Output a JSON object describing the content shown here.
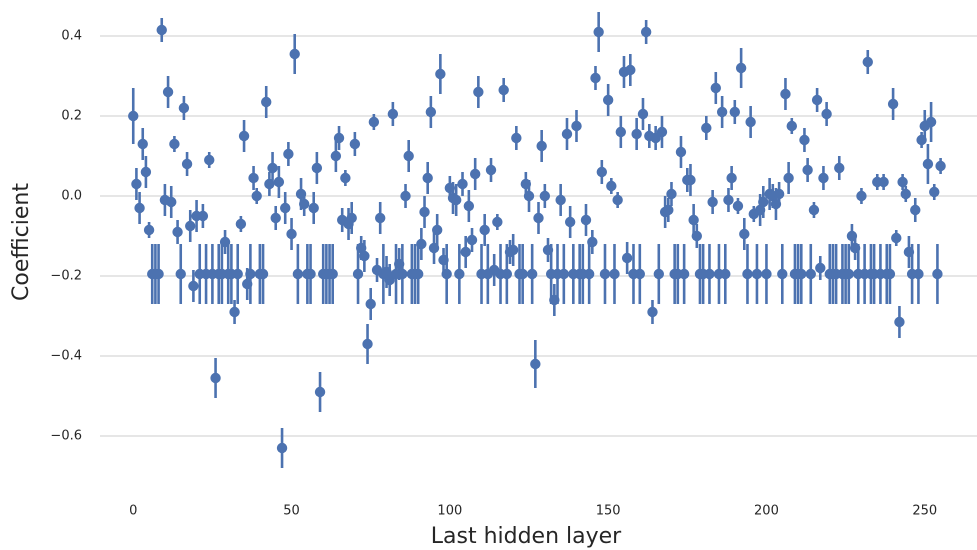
{
  "chart_data": {
    "type": "errorbar-scatter",
    "xlabel": "Last hidden layer",
    "ylabel": "Coefficient",
    "color": "#4c72b0",
    "grid": true,
    "xlim": [
      -10.5,
      266.5
    ],
    "ylim": [
      -0.71,
      0.49
    ],
    "xticks": [
      0,
      50,
      100,
      150,
      200,
      250
    ],
    "yticks": [
      {
        "value": -0.6,
        "label": "−0.6"
      },
      {
        "value": -0.4,
        "label": "−0.4"
      },
      {
        "value": -0.2,
        "label": "−0.2"
      },
      {
        "value": 0,
        "label": "0.0"
      },
      0.2,
      0.4
    ],
    "x": [
      0,
      1,
      2,
      3,
      4,
      5,
      6,
      7,
      8,
      9,
      10,
      11,
      12,
      13,
      14,
      15,
      16,
      17,
      18,
      19,
      20,
      21,
      22,
      23,
      24,
      25,
      26,
      27,
      28,
      29,
      30,
      31,
      32,
      33,
      34,
      35,
      36,
      37,
      38,
      39,
      40,
      41,
      42,
      43,
      44,
      45,
      46,
      47,
      48,
      49,
      50,
      51,
      52,
      53,
      54,
      55,
      56,
      57,
      58,
      59,
      60,
      61,
      62,
      63,
      64,
      65,
      66,
      67,
      68,
      69,
      70,
      71,
      72,
      73,
      74,
      75,
      76,
      77,
      78,
      79,
      80,
      81,
      82,
      83,
      84,
      85,
      86,
      87,
      88,
      89,
      90,
      91,
      92,
      93,
      94,
      95,
      96,
      97,
      98,
      99,
      100,
      101,
      102,
      103,
      104,
      105,
      106,
      107,
      108,
      109,
      110,
      111,
      112,
      113,
      114,
      115,
      116,
      117,
      118,
      119,
      120,
      121,
      122,
      123,
      124,
      125,
      126,
      127,
      128,
      129,
      130,
      131,
      132,
      133,
      134,
      135,
      136,
      137,
      138,
      139,
      140,
      141,
      142,
      143,
      144,
      145,
      146,
      147,
      148,
      149,
      150,
      151,
      152,
      153,
      154,
      155,
      156,
      157,
      158,
      159,
      160,
      161,
      162,
      163,
      164,
      165,
      166,
      167,
      168,
      169,
      170,
      171,
      172,
      173,
      174,
      175,
      176,
      177,
      178,
      179,
      180,
      181,
      182,
      183,
      184,
      185,
      186,
      187,
      188,
      189,
      190,
      191,
      192,
      193,
      194,
      195,
      196,
      197,
      198,
      199,
      200,
      201,
      202,
      203,
      204,
      205,
      206,
      207,
      208,
      209,
      210,
      211,
      212,
      213,
      214,
      215,
      216,
      217,
      218,
      219,
      220,
      221,
      222,
      223,
      224,
      225,
      226,
      227,
      228,
      229,
      230,
      231,
      232,
      233,
      234,
      235,
      236,
      237,
      238,
      239,
      240,
      241,
      242,
      243,
      244,
      245,
      246,
      247,
      248,
      249,
      250,
      251,
      252,
      253,
      254,
      255
    ],
    "values": [
      0.2,
      0.03,
      -0.03,
      0.13,
      0.06,
      -0.085,
      -0.195,
      -0.195,
      -0.195,
      0.415,
      -0.01,
      0.26,
      -0.015,
      0.13,
      -0.09,
      -0.195,
      0.22,
      0.08,
      -0.075,
      -0.225,
      -0.05,
      -0.195,
      -0.05,
      -0.195,
      0.09,
      -0.195,
      -0.455,
      -0.195,
      -0.195,
      -0.115,
      -0.195,
      -0.195,
      -0.29,
      -0.195,
      -0.07,
      0.15,
      -0.22,
      -0.195,
      0.045,
      0.0,
      -0.195,
      -0.195,
      0.235,
      0.03,
      0.07,
      -0.055,
      0.035,
      -0.63,
      -0.03,
      0.105,
      -0.095,
      0.355,
      -0.195,
      0.005,
      -0.02,
      -0.195,
      -0.195,
      -0.03,
      0.07,
      -0.49,
      -0.195,
      -0.195,
      -0.195,
      -0.195,
      0.1,
      0.145,
      -0.06,
      0.045,
      -0.07,
      -0.055,
      0.13,
      -0.195,
      -0.13,
      -0.15,
      -0.37,
      -0.27,
      0.185,
      -0.185,
      -0.055,
      -0.195,
      -0.19,
      -0.21,
      0.205,
      -0.195,
      -0.17,
      -0.195,
      0.0,
      0.1,
      -0.195,
      -0.195,
      -0.195,
      -0.12,
      -0.04,
      0.045,
      0.21,
      -0.13,
      -0.085,
      0.305,
      -0.16,
      -0.195,
      0.02,
      -0.005,
      -0.01,
      -0.195,
      0.03,
      -0.14,
      -0.025,
      -0.11,
      0.055,
      0.26,
      -0.195,
      -0.085,
      -0.195,
      0.065,
      -0.185,
      -0.065,
      -0.195,
      0.265,
      -0.195,
      -0.14,
      -0.135,
      0.145,
      -0.195,
      -0.195,
      0.03,
      0.0,
      -0.195,
      -0.42,
      -0.055,
      0.125,
      0.0,
      -0.135,
      -0.195,
      -0.26,
      -0.195,
      -0.01,
      -0.195,
      0.155,
      -0.065,
      -0.195,
      0.175,
      -0.195,
      -0.195,
      -0.06,
      -0.195,
      -0.115,
      0.295,
      0.41,
      0.06,
      -0.195,
      0.24,
      0.025,
      -0.195,
      -0.01,
      0.16,
      0.31,
      -0.155,
      0.315,
      -0.195,
      0.155,
      -0.195,
      0.205,
      0.41,
      0.15,
      -0.29,
      0.145,
      -0.195,
      0.16,
      -0.04,
      -0.035,
      0.005,
      -0.195,
      -0.195,
      0.11,
      -0.195,
      0.04,
      0.04,
      -0.06,
      -0.1,
      -0.195,
      -0.195,
      0.17,
      -0.195,
      -0.015,
      0.27,
      -0.195,
      0.21,
      -0.195,
      -0.01,
      0.045,
      0.21,
      -0.025,
      0.32,
      -0.095,
      -0.195,
      0.185,
      -0.045,
      -0.195,
      -0.035,
      -0.015,
      -0.195,
      0.005,
      0.0,
      -0.02,
      0.005,
      -0.195,
      0.255,
      0.045,
      0.175,
      -0.195,
      -0.195,
      -0.195,
      0.14,
      0.065,
      -0.195,
      -0.035,
      0.24,
      -0.18,
      0.045,
      0.205,
      -0.195,
      -0.195,
      -0.195,
      0.07,
      -0.195,
      -0.195,
      -0.195,
      -0.1,
      -0.13,
      -0.195,
      0.0,
      -0.195,
      0.335,
      -0.195,
      -0.195,
      0.035,
      -0.195,
      0.035,
      -0.195,
      -0.195,
      0.23,
      -0.105,
      -0.315,
      0.035,
      0.005,
      -0.14,
      -0.195,
      -0.035,
      -0.195,
      0.14,
      0.175,
      0.08,
      0.185,
      0.01,
      -0.195,
      0.075
    ],
    "errors": [
      0.07,
      0.04,
      0.04,
      0.04,
      0.04,
      0.02,
      0.075,
      0.075,
      0.075,
      0.03,
      0.04,
      0.04,
      0.04,
      0.02,
      0.03,
      0.075,
      0.03,
      0.03,
      0.04,
      0.04,
      0.04,
      0.075,
      0.03,
      0.075,
      0.02,
      0.075,
      0.05,
      0.075,
      0.075,
      0.03,
      0.075,
      0.075,
      0.03,
      0.075,
      0.02,
      0.04,
      0.04,
      0.075,
      0.03,
      0.02,
      0.075,
      0.075,
      0.04,
      0.03,
      0.04,
      0.03,
      0.04,
      0.05,
      0.04,
      0.03,
      0.04,
      0.05,
      0.075,
      0.04,
      0.03,
      0.075,
      0.075,
      0.04,
      0.04,
      0.05,
      0.075,
      0.075,
      0.075,
      0.075,
      0.04,
      0.03,
      0.03,
      0.02,
      0.04,
      0.04,
      0.03,
      0.075,
      0.03,
      0.04,
      0.05,
      0.04,
      0.02,
      0.03,
      0.04,
      0.075,
      0.04,
      0.04,
      0.03,
      0.075,
      0.04,
      0.075,
      0.03,
      0.04,
      0.075,
      0.075,
      0.075,
      0.04,
      0.04,
      0.04,
      0.04,
      0.04,
      0.04,
      0.05,
      0.03,
      0.075,
      0.03,
      0.04,
      0.04,
      0.075,
      0.03,
      0.04,
      0.04,
      0.03,
      0.04,
      0.04,
      0.075,
      0.04,
      0.075,
      0.03,
      0.04,
      0.02,
      0.075,
      0.03,
      0.075,
      0.03,
      0.04,
      0.03,
      0.075,
      0.075,
      0.03,
      0.04,
      0.075,
      0.06,
      0.04,
      0.04,
      0.03,
      0.03,
      0.075,
      0.04,
      0.075,
      0.04,
      0.075,
      0.04,
      0.04,
      0.075,
      0.04,
      0.075,
      0.075,
      0.04,
      0.075,
      0.03,
      0.03,
      0.05,
      0.03,
      0.075,
      0.04,
      0.02,
      0.075,
      0.02,
      0.04,
      0.04,
      0.04,
      0.04,
      0.075,
      0.04,
      0.075,
      0.04,
      0.03,
      0.03,
      0.03,
      0.03,
      0.075,
      0.04,
      0.04,
      0.03,
      0.03,
      0.075,
      0.075,
      0.04,
      0.075,
      0.03,
      0.04,
      0.04,
      0.03,
      0.075,
      0.075,
      0.03,
      0.075,
      0.03,
      0.04,
      0.075,
      0.04,
      0.075,
      0.03,
      0.03,
      0.03,
      0.02,
      0.05,
      0.04,
      0.075,
      0.04,
      0.02,
      0.075,
      0.04,
      0.04,
      0.075,
      0.04,
      0.03,
      0.04,
      0.03,
      0.075,
      0.04,
      0.04,
      0.02,
      0.075,
      0.075,
      0.075,
      0.03,
      0.03,
      0.075,
      0.02,
      0.03,
      0.03,
      0.03,
      0.03,
      0.075,
      0.075,
      0.075,
      0.03,
      0.075,
      0.075,
      0.075,
      0.03,
      0.03,
      0.075,
      0.02,
      0.075,
      0.03,
      0.075,
      0.075,
      0.02,
      0.075,
      0.02,
      0.075,
      0.075,
      0.04,
      0.02,
      0.04,
      0.02,
      0.02,
      0.04,
      0.075,
      0.03,
      0.075,
      0.02,
      0.04,
      0.05,
      0.05,
      0.02,
      0.075,
      0.02
    ]
  }
}
